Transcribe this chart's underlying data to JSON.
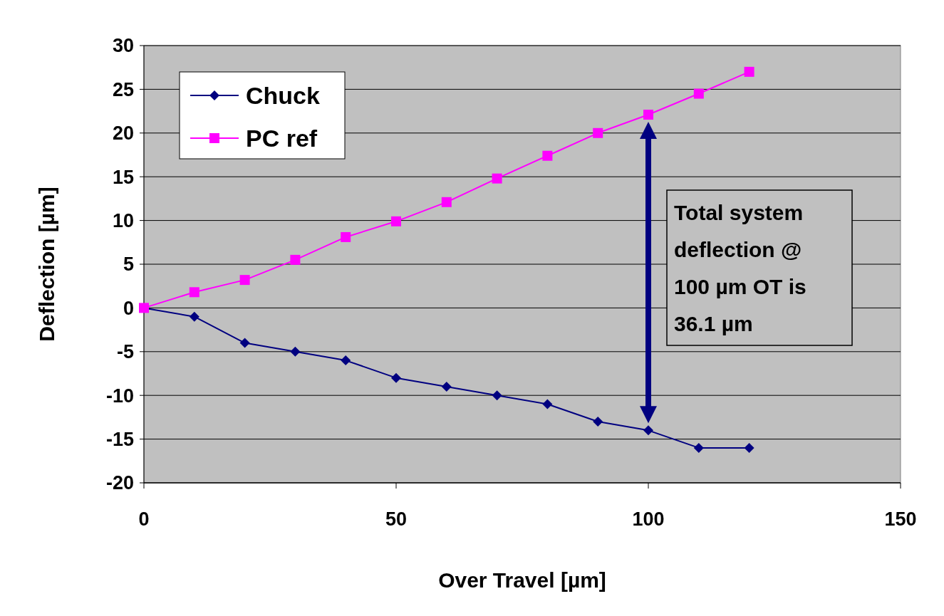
{
  "chart_data": {
    "type": "line",
    "xlabel": "Over Travel [µm]",
    "ylabel": "Deflection [µm]",
    "x": [
      0,
      10,
      20,
      30,
      40,
      50,
      60,
      70,
      80,
      90,
      100,
      110,
      120
    ],
    "series": [
      {
        "name": "Chuck",
        "color": "#000080",
        "marker": "diamond",
        "values": [
          0,
          -1,
          -4,
          -5,
          -6,
          -8,
          -9,
          -10,
          -11,
          -13,
          -14,
          -16,
          -16
        ]
      },
      {
        "name": "PC ref",
        "color": "#ff00ff",
        "marker": "square",
        "values": [
          0,
          1.8,
          3.2,
          5.5,
          8.1,
          9.9,
          12.1,
          14.8,
          17.4,
          20,
          22.1,
          24.5,
          27
        ]
      }
    ],
    "xlim": [
      0,
      150
    ],
    "xticks": [
      0,
      50,
      100,
      150
    ],
    "ylim": [
      -20,
      30
    ],
    "yticks": [
      -20,
      -15,
      -10,
      -5,
      0,
      5,
      10,
      15,
      20,
      25,
      30
    ],
    "grid": "y",
    "legend": "top left",
    "annotations": [
      "Total system deflection @ 100 µm OT is 36.1 µm"
    ]
  }
}
